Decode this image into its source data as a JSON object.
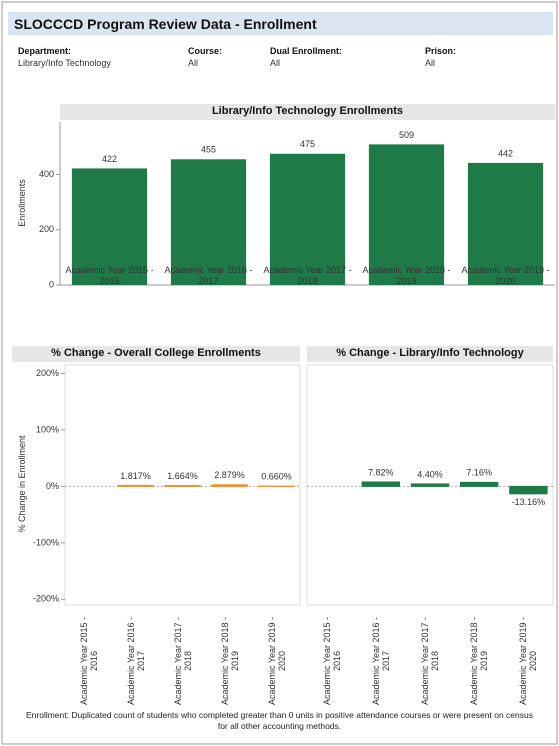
{
  "header": {
    "title": "SLOCCCD Program Review Data - Enrollment",
    "filters": [
      {
        "label": "Department:",
        "value": "Library/Info Technology"
      },
      {
        "label": "Course:",
        "value": "All"
      },
      {
        "label": "Dual Enrollment:",
        "value": "All"
      },
      {
        "label": "Prison:",
        "value": "All"
      }
    ]
  },
  "chart_data": [
    {
      "type": "bar",
      "title": "Library/Info Technology Enrollments",
      "ylabel": "Enrollments",
      "categories": [
        "Academic Year 2015 - 2016",
        "Academic Year 2016 - 2017",
        "Academic Year 2017 - 2018",
        "Academic Year 2018 - 2019",
        "Academic Year 2019 - 2020"
      ],
      "values": [
        422,
        455,
        475,
        509,
        442
      ],
      "color": "#1e7a46",
      "ylim": [
        0,
        590
      ],
      "yticks": [
        0,
        200,
        400
      ]
    },
    {
      "type": "bar",
      "title": "% Change - Overall College Enrollments",
      "ylabel": "% Change in Enrollment",
      "categories": [
        "Academic Year 2015 - 2016",
        "Academic Year 2016 - 2017",
        "Academic Year 2017 - 2018",
        "Academic Year 2018 - 2019",
        "Academic Year 2019 - 2020"
      ],
      "values": [
        null,
        1.817,
        1.664,
        2.879,
        0.66
      ],
      "value_labels": [
        null,
        "1.817%",
        "1.664%",
        "2.879%",
        "0.660%"
      ],
      "color": "#f28e2b",
      "ylim": [
        -210,
        215
      ],
      "yticks": [
        {
          "value": -200,
          "label": "-200%"
        },
        {
          "value": -100,
          "label": "-100%"
        },
        {
          "value": 0,
          "label": "0%"
        },
        {
          "value": 100,
          "label": "100%"
        },
        {
          "value": 200,
          "label": "200%"
        }
      ]
    },
    {
      "type": "bar",
      "title": "% Change - Library/Info Technology",
      "categories": [
        "Academic Year 2015 - 2016",
        "Academic Year 2016 - 2017",
        "Academic Year 2017 - 2018",
        "Academic Year 2018 - 2019",
        "Academic Year 2019 - 2020"
      ],
      "values": [
        null,
        7.82,
        4.4,
        7.16,
        -13.16
      ],
      "value_labels": [
        null,
        "7.82%",
        "4.40%",
        "7.16%",
        "-13.16%"
      ],
      "color": "#1e7a46",
      "ylim": [
        -210,
        215
      ]
    }
  ],
  "footnote": "Enrollment: Duplicated count of students who completed greater than 0 units in positive attendance courses or were present on census for all other accounting methods."
}
